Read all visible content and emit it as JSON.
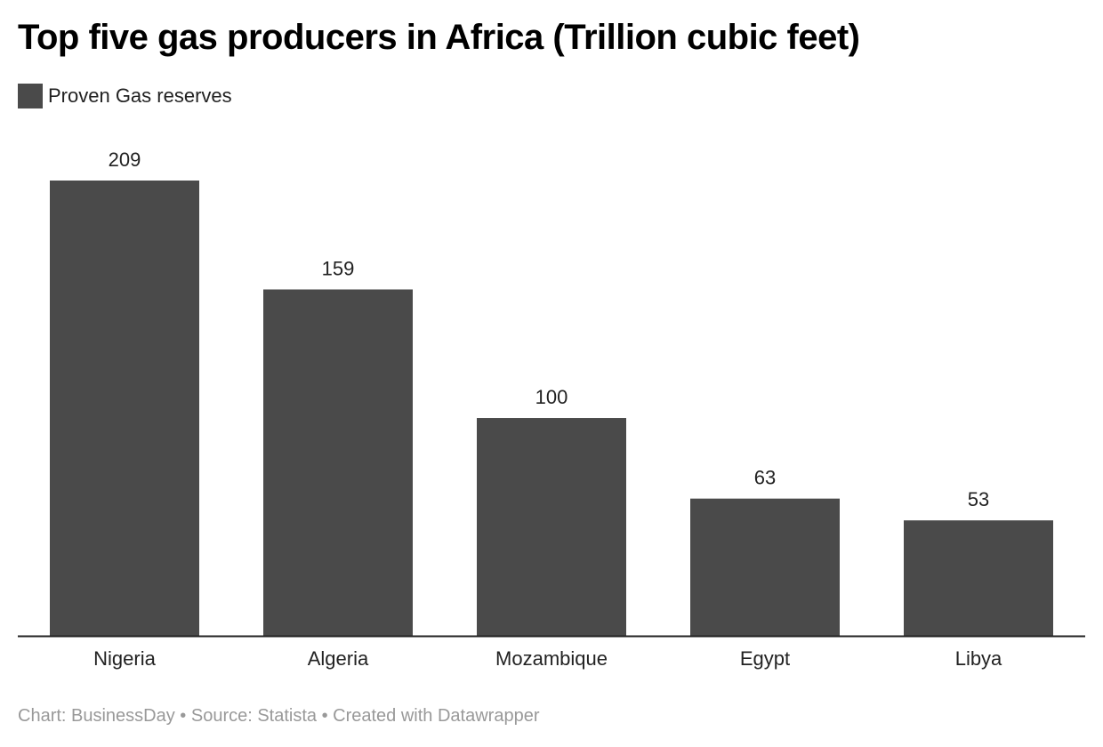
{
  "chart_data": {
    "type": "bar",
    "title": "Top five gas producers in Africa (Trillion cubic feet)",
    "legend": [
      "Proven Gas reserves"
    ],
    "legend_position": "top-left",
    "categories": [
      "Nigeria",
      "Algeria",
      "Mozambique",
      "Egypt",
      "Libya"
    ],
    "series": [
      {
        "name": "Proven Gas reserves",
        "values": [
          209,
          159,
          100,
          63,
          53
        ],
        "color": "#4a4a4a"
      }
    ],
    "xlabel": "",
    "ylabel": "",
    "ylim": [
      0,
      209
    ],
    "grid": false
  },
  "footer": "Chart: BusinessDay • Source: Statista • Created with Datawrapper"
}
